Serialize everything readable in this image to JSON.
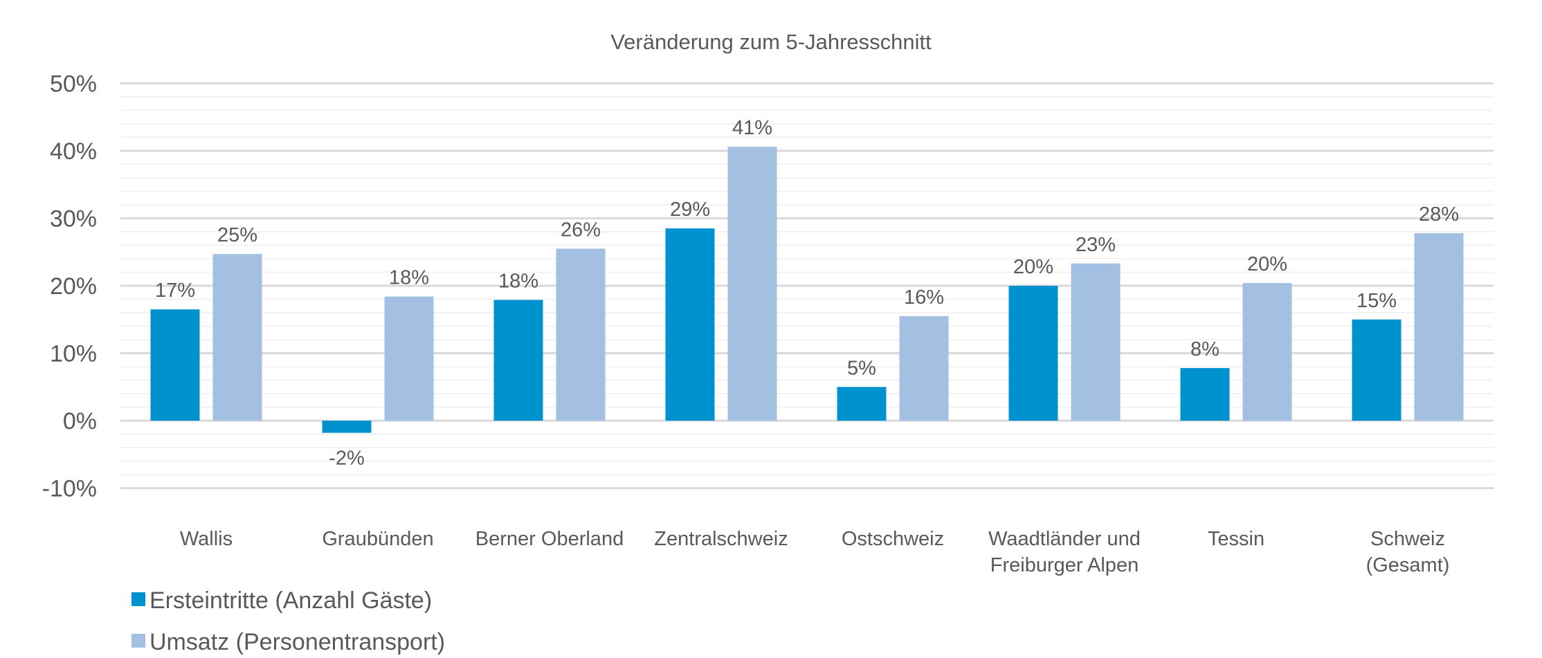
{
  "chart_data": {
    "type": "bar",
    "title": "Veränderung zum 5-Jahresschnitt",
    "xlabel": "",
    "ylabel": "",
    "ylim": [
      -10,
      50
    ],
    "yticks": [
      -10,
      0,
      10,
      20,
      30,
      40,
      50
    ],
    "ytick_labels": [
      "-10%",
      "0%",
      "10%",
      "20%",
      "30%",
      "40%",
      "50%"
    ],
    "minor_grid_step": 2,
    "grid": true,
    "legend_position": "bottom-left",
    "categories": [
      [
        "Wallis"
      ],
      [
        "Graubünden"
      ],
      [
        "Berner Oberland"
      ],
      [
        "Zentralschweiz"
      ],
      [
        "Ostschweiz"
      ],
      [
        "Waadtländer und",
        "Freiburger Alpen"
      ],
      [
        "Tessin"
      ],
      [
        "Schweiz",
        "(Gesamt)"
      ]
    ],
    "series": [
      {
        "name": "Ersteintritte (Anzahl Gäste)",
        "color": "#0092CF",
        "values": [
          16.5,
          -1.8,
          17.9,
          28.5,
          5.0,
          20.0,
          7.8,
          15.0
        ],
        "labels": [
          "17%",
          "-2%",
          "18%",
          "29%",
          "5%",
          "20%",
          "8%",
          "15%"
        ]
      },
      {
        "name": "Umsatz (Personentransport)",
        "color": "#A3BFE2",
        "values": [
          24.7,
          18.4,
          25.5,
          40.6,
          15.5,
          23.3,
          20.4,
          27.8
        ],
        "labels": [
          "25%",
          "18%",
          "26%",
          "41%",
          "16%",
          "23%",
          "20%",
          "28%"
        ]
      }
    ]
  }
}
